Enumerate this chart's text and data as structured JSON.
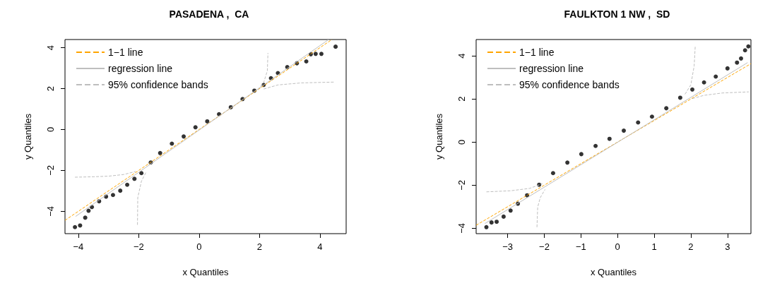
{
  "chart_data": [
    {
      "type": "scatter",
      "title": "PASADENA ,  CA",
      "xlabel": "x Quantiles",
      "ylabel": "y Quantiles",
      "xlim": [
        -4.44,
        4.87
      ],
      "ylim": [
        -5.09,
        4.4
      ],
      "xticks": [
        -4,
        -2,
        0,
        2,
        4
      ],
      "yticks": [
        -4,
        -2,
        0,
        2,
        4
      ],
      "grid": false,
      "legend": "top left",
      "marker": "circle",
      "series": [
        {
          "color": "#000000",
          "x": [
            -4.11,
            -3.94,
            -3.77,
            -3.66,
            -3.55,
            -3.31,
            -3.08,
            -2.85,
            -2.61,
            -2.38,
            -2.14,
            -1.91,
            -1.6,
            -1.29,
            -0.9,
            -0.51,
            -0.12,
            0.27,
            0.66,
            1.05,
            1.44,
            1.83,
            2.14,
            2.38,
            2.61,
            2.92,
            3.24,
            3.55,
            3.7,
            3.86,
            4.05,
            4.52
          ],
          "values": [
            -4.77,
            -4.69,
            -4.31,
            -3.97,
            -3.79,
            -3.51,
            -3.28,
            -3.2,
            -2.99,
            -2.7,
            -2.41,
            -2.13,
            -1.61,
            -1.15,
            -0.69,
            -0.34,
            0.11,
            0.4,
            0.75,
            1.09,
            1.49,
            1.9,
            2.18,
            2.51,
            2.76,
            3.05,
            3.24,
            3.33,
            3.68,
            3.7,
            3.7,
            4.05
          ]
        },
        {
          "type": "line",
          "name": "1−1 line",
          "color": "#ffa500",
          "line_style": "dashed",
          "marker": "none",
          "x": [
            -4.44,
            4.4
          ],
          "values": [
            -4.44,
            4.4
          ]
        },
        {
          "type": "line",
          "name": "regression line",
          "color": "#bebebe",
          "line_style": "solid",
          "marker": "none",
          "x": [
            -4.09,
            4.29
          ],
          "values": [
            -4.25,
            4.4
          ]
        },
        {
          "type": "line",
          "name": "95% confidence bands",
          "color": "#bebebe",
          "line_style": "dashed",
          "marker": "none",
          "x": [
            -4.11,
            -3.5,
            -3,
            -2.5,
            -2.1,
            null,
            -2.04,
            -2.03,
            -1.91,
            -1.75,
            null,
            1.95,
            2.14,
            2.26,
            2.28,
            null,
            2.14,
            2.61,
            3.39,
            4.48
          ],
          "values": [
            -2.33,
            -2.31,
            -2.28,
            -2.2,
            -2.05,
            null,
            -4.66,
            -3.33,
            -2.53,
            -2.07,
            null,
            1.95,
            2.3,
            2.87,
            3.74,
            null,
            1.98,
            2.18,
            2.28,
            2.32
          ]
        }
      ]
    },
    {
      "type": "scatter",
      "title": "FAULKTON 1 NW ,  SD",
      "xlabel": "x Quantiles",
      "ylabel": "y Quantiles",
      "xlim": [
        -3.86,
        3.64
      ],
      "ylim": [
        -4.25,
        4.76
      ],
      "xticks": [
        -3,
        -2,
        -1,
        0,
        1,
        2,
        3
      ],
      "yticks": [
        -4,
        -2,
        0,
        2,
        4
      ],
      "grid": false,
      "legend": "top left",
      "marker": "circle",
      "series": [
        {
          "color": "#000000",
          "x": [
            -3.58,
            -3.44,
            -3.3,
            -3.11,
            -2.92,
            -2.72,
            -2.47,
            -2.14,
            -1.76,
            -1.37,
            -0.99,
            -0.6,
            -0.22,
            0.17,
            0.56,
            0.94,
            1.33,
            1.71,
            2.04,
            2.36,
            2.68,
            3.0,
            3.26,
            3.37,
            3.48,
            3.57
          ],
          "values": [
            -3.95,
            -3.73,
            -3.7,
            -3.46,
            -3.18,
            -2.86,
            -2.47,
            -1.98,
            -1.44,
            -0.95,
            -0.56,
            -0.18,
            0.15,
            0.53,
            0.91,
            1.18,
            1.57,
            2.06,
            2.44,
            2.77,
            3.04,
            3.42,
            3.69,
            3.88,
            4.26,
            4.44
          ]
        },
        {
          "type": "line",
          "name": "1−1 line",
          "color": "#ffa500",
          "line_style": "dashed",
          "marker": "none",
          "x": [
            -3.86,
            3.64
          ],
          "values": [
            -3.86,
            3.64
          ]
        },
        {
          "type": "line",
          "name": "regression line",
          "color": "#bebebe",
          "line_style": "solid",
          "marker": "none",
          "x": [
            -3.62,
            3.55
          ],
          "values": [
            -3.78,
            3.69
          ]
        },
        {
          "type": "line",
          "name": "95% confidence bands",
          "color": "#bebebe",
          "line_style": "dashed",
          "marker": "none",
          "x": [
            -3.58,
            -2.92,
            -2.4,
            -2.05,
            null,
            -2.2,
            -2.18,
            -2.11,
            -1.98,
            null,
            1.84,
            2.0,
            2.09,
            2.12,
            null,
            2.04,
            2.36,
            2.87,
            3.58
          ],
          "values": [
            -2.31,
            -2.26,
            -2.15,
            -1.93,
            null,
            -3.95,
            -3.02,
            -2.58,
            -2.2,
            null,
            2.22,
            2.66,
            3.53,
            4.46,
            null,
            2.02,
            2.17,
            2.28,
            2.33
          ]
        }
      ]
    }
  ]
}
